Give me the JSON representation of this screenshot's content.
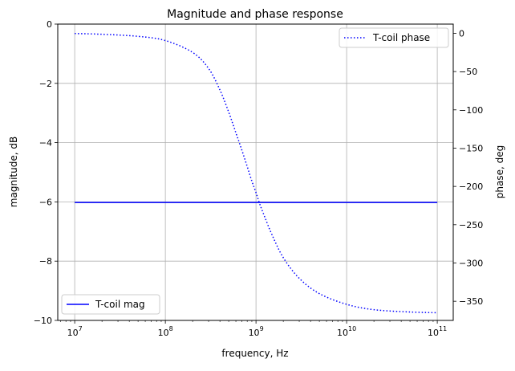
{
  "chart_data": {
    "type": "line",
    "title": "Magnitude and phase response",
    "xlabel": "frequency, Hz",
    "ylabel_left": "magnitude, dB",
    "ylabel_right": "phase, deg",
    "x_scale": "log",
    "xlim": [
      6500000,
      150000000000
    ],
    "ylim_left": [
      -10,
      0
    ],
    "ylim_right": [
      -375,
      12
    ],
    "x_ticks": [
      {
        "value": 10000000,
        "base": "10",
        "exp": "7"
      },
      {
        "value": 100000000,
        "base": "10",
        "exp": "8"
      },
      {
        "value": 1000000000,
        "base": "10",
        "exp": "9"
      },
      {
        "value": 10000000000,
        "base": "10",
        "exp": "10"
      },
      {
        "value": 100000000000,
        "base": "10",
        "exp": "11"
      }
    ],
    "y_ticks_left": [
      {
        "value": 0,
        "label": "0"
      },
      {
        "value": -2,
        "label": "−2"
      },
      {
        "value": -4,
        "label": "−4"
      },
      {
        "value": -6,
        "label": "−6"
      },
      {
        "value": -8,
        "label": "−8"
      },
      {
        "value": -10,
        "label": "−10"
      }
    ],
    "y_ticks_right": [
      {
        "value": 0,
        "label": "0"
      },
      {
        "value": -50,
        "label": "−50"
      },
      {
        "value": -100,
        "label": "−100"
      },
      {
        "value": -150,
        "label": "−150"
      },
      {
        "value": -200,
        "label": "−200"
      },
      {
        "value": -250,
        "label": "−250"
      },
      {
        "value": -300,
        "label": "−300"
      },
      {
        "value": -350,
        "label": "−350"
      }
    ],
    "grid": true,
    "series": [
      {
        "name": "T-coil mag",
        "axis": "left",
        "style": "solid",
        "color": "#0000ff",
        "x": [
          10000000,
          100000000000
        ],
        "y": [
          -6.02,
          -6.02
        ]
      },
      {
        "name": "T-coil phase",
        "axis": "right",
        "style": "dotted",
        "color": "#0000ff",
        "x": [
          10000000,
          20000000,
          50000000,
          100000000,
          200000000,
          300000000,
          400000000,
          500000000,
          600000000,
          700000000,
          800000000,
          900000000,
          1000000000,
          1100000000,
          1250000000,
          1500000000,
          2000000000,
          3000000000,
          5000000000,
          10000000000,
          20000000000,
          50000000000,
          100000000000
        ],
        "y": [
          -0.3,
          -1.3,
          -4,
          -9.5,
          -25,
          -46,
          -74,
          -103,
          -130,
          -153,
          -174,
          -193,
          -208,
          -223,
          -240,
          -263,
          -293,
          -320,
          -340,
          -354,
          -361,
          -364,
          -365
        ]
      }
    ],
    "legends": [
      {
        "series": "T-coil phase",
        "placement": "upper right"
      },
      {
        "series": "T-coil mag",
        "placement": "lower left"
      }
    ]
  }
}
